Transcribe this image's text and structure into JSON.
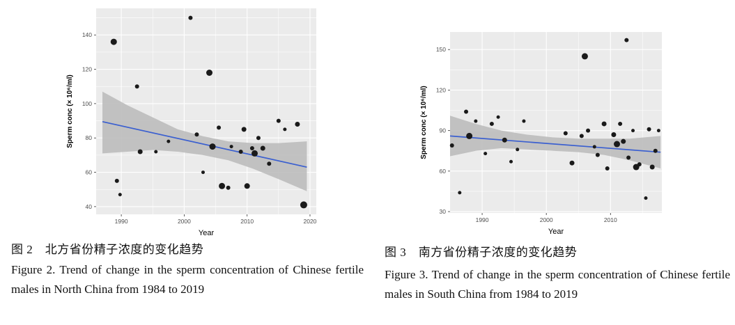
{
  "figures": [
    {
      "caption_zh": "图 2　北方省份精子浓度的变化趋势",
      "caption_en": "Figure 2. Trend of change in the sperm concentration of Chinese fertile males in North China from 1984 to 2019"
    },
    {
      "caption_zh": "图 3　南方省份精子浓度的变化趋势",
      "caption_en": "Figure 3. Trend of change in the sperm concentration of Chinese fertile males in South China from 1984 to 2019"
    }
  ],
  "chart_data": [
    {
      "type": "scatter",
      "title": "",
      "xlabel": "Year",
      "ylabel": "Sperm conc (× 10⁶/ml)",
      "xlim": [
        1986,
        2021
      ],
      "ylim": [
        35.5,
        155.5
      ],
      "xticks": [
        1990,
        2000,
        2010,
        2020
      ],
      "yticks": [
        40,
        60,
        80,
        100,
        120,
        140
      ],
      "grid": true,
      "legend": "none",
      "points": [
        {
          "x": 1988.8,
          "y": 136,
          "r": 4.5
        },
        {
          "x": 1989.3,
          "y": 55,
          "r": 3
        },
        {
          "x": 1989.8,
          "y": 47,
          "r": 2.5
        },
        {
          "x": 1992.5,
          "y": 110,
          "r": 3
        },
        {
          "x": 1993,
          "y": 72,
          "r": 3.5
        },
        {
          "x": 1995.5,
          "y": 72,
          "r": 2.5
        },
        {
          "x": 1997.5,
          "y": 78,
          "r": 2.5
        },
        {
          "x": 2001,
          "y": 150,
          "r": 3
        },
        {
          "x": 2002,
          "y": 82,
          "r": 3
        },
        {
          "x": 2003,
          "y": 60,
          "r": 2.5
        },
        {
          "x": 2004,
          "y": 118,
          "r": 4.5
        },
        {
          "x": 2004.5,
          "y": 75,
          "r": 4.5
        },
        {
          "x": 2005.5,
          "y": 86,
          "r": 3
        },
        {
          "x": 2006,
          "y": 52,
          "r": 4.5
        },
        {
          "x": 2007,
          "y": 51,
          "r": 3
        },
        {
          "x": 2007.5,
          "y": 75,
          "r": 2.5
        },
        {
          "x": 2009,
          "y": 72,
          "r": 3
        },
        {
          "x": 2009.5,
          "y": 85,
          "r": 3.5
        },
        {
          "x": 2010,
          "y": 52,
          "r": 4
        },
        {
          "x": 2010.8,
          "y": 74,
          "r": 3
        },
        {
          "x": 2011.2,
          "y": 71,
          "r": 4.5
        },
        {
          "x": 2011.8,
          "y": 80,
          "r": 3
        },
        {
          "x": 2012.5,
          "y": 74,
          "r": 3.5
        },
        {
          "x": 2013.5,
          "y": 65,
          "r": 3
        },
        {
          "x": 2015,
          "y": 90,
          "r": 3
        },
        {
          "x": 2016,
          "y": 85,
          "r": 2.5
        },
        {
          "x": 2018,
          "y": 88,
          "r": 3.5
        },
        {
          "x": 2019,
          "y": 41,
          "r": 5
        }
      ],
      "trend": {
        "x1": 1987,
        "y1": 89.5,
        "x2": 2019.5,
        "y2": 63
      },
      "band": {
        "x": [
          1987,
          1991,
          1995,
          1999,
          2003,
          2007,
          2011,
          2015,
          2019.5
        ],
        "lower": [
          71,
          72,
          73,
          72,
          70,
          67,
          62,
          56,
          49
        ],
        "upper": [
          107,
          99,
          92,
          85,
          81,
          78,
          77,
          77,
          78
        ]
      },
      "colors": {
        "panel": "#ebebeb",
        "grid": "#ffffff",
        "band": "#bdbdbd",
        "point": "#1a1a1a",
        "line": "#3a5fd0"
      }
    },
    {
      "type": "scatter",
      "title": "",
      "xlabel": "Year",
      "ylabel": "Sperm conc (× 10⁶/ml)",
      "xlim": [
        1985,
        2018
      ],
      "ylim": [
        29,
        163
      ],
      "xticks": [
        1990,
        2000,
        2010
      ],
      "yticks": [
        30,
        60,
        90,
        120,
        150
      ],
      "grid": true,
      "legend": "none",
      "points": [
        {
          "x": 1985.3,
          "y": 79,
          "r": 3
        },
        {
          "x": 1986.5,
          "y": 44,
          "r": 2.5
        },
        {
          "x": 1987.5,
          "y": 104,
          "r": 3
        },
        {
          "x": 1988,
          "y": 86,
          "r": 4.5
        },
        {
          "x": 1989,
          "y": 97,
          "r": 2.5
        },
        {
          "x": 1990.5,
          "y": 73,
          "r": 2.5
        },
        {
          "x": 1991.5,
          "y": 95,
          "r": 3
        },
        {
          "x": 1992.5,
          "y": 100,
          "r": 2.5
        },
        {
          "x": 1993.5,
          "y": 83,
          "r": 3.5
        },
        {
          "x": 1994.5,
          "y": 67,
          "r": 2.5
        },
        {
          "x": 1995.5,
          "y": 76,
          "r": 2.5
        },
        {
          "x": 1996.5,
          "y": 97,
          "r": 2.5
        },
        {
          "x": 2003,
          "y": 88,
          "r": 3
        },
        {
          "x": 2004,
          "y": 66,
          "r": 3.5
        },
        {
          "x": 2005.5,
          "y": 86,
          "r": 3
        },
        {
          "x": 2006,
          "y": 145,
          "r": 4.5
        },
        {
          "x": 2006.5,
          "y": 90,
          "r": 3
        },
        {
          "x": 2007.5,
          "y": 78,
          "r": 2.5
        },
        {
          "x": 2008,
          "y": 72,
          "r": 3
        },
        {
          "x": 2009,
          "y": 95,
          "r": 3.5
        },
        {
          "x": 2009.5,
          "y": 62,
          "r": 3
        },
        {
          "x": 2010.5,
          "y": 87,
          "r": 3.5
        },
        {
          "x": 2011,
          "y": 80,
          "r": 4.5
        },
        {
          "x": 2011.5,
          "y": 95,
          "r": 3
        },
        {
          "x": 2012,
          "y": 82,
          "r": 3.5
        },
        {
          "x": 2012.5,
          "y": 157,
          "r": 3
        },
        {
          "x": 2012.8,
          "y": 70,
          "r": 3
        },
        {
          "x": 2013.5,
          "y": 90,
          "r": 2.5
        },
        {
          "x": 2014,
          "y": 63,
          "r": 4.5
        },
        {
          "x": 2014.5,
          "y": 65,
          "r": 3
        },
        {
          "x": 2015.5,
          "y": 40,
          "r": 2.5
        },
        {
          "x": 2016,
          "y": 91,
          "r": 3
        },
        {
          "x": 2016.5,
          "y": 63,
          "r": 3.5
        },
        {
          "x": 2017,
          "y": 75,
          "r": 3
        },
        {
          "x": 2017.5,
          "y": 90,
          "r": 2.5
        }
      ],
      "trend": {
        "x1": 1985,
        "y1": 86,
        "x2": 2017.8,
        "y2": 74
      },
      "band": {
        "x": [
          1985,
          1989,
          1993,
          1997,
          2001,
          2005,
          2009,
          2013,
          2017.8
        ],
        "lower": [
          71,
          75,
          77,
          76,
          75,
          74,
          72,
          68,
          62
        ],
        "upper": [
          101,
          95,
          90,
          87,
          85,
          84,
          84,
          84,
          86
        ]
      },
      "colors": {
        "panel": "#ebebeb",
        "grid": "#ffffff",
        "band": "#bdbdbd",
        "point": "#1a1a1a",
        "line": "#3a5fd0"
      }
    }
  ]
}
